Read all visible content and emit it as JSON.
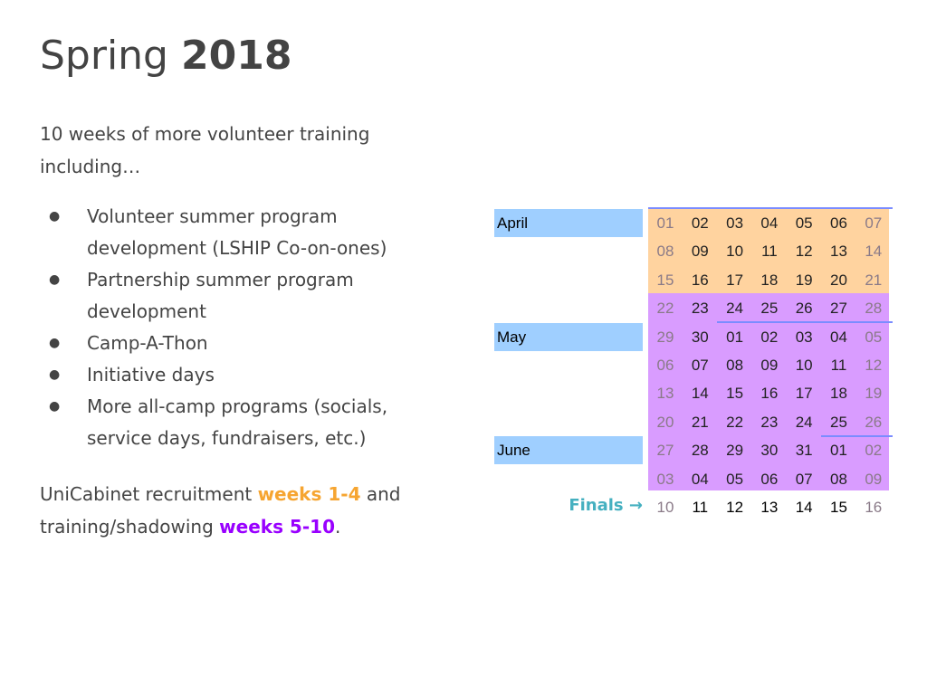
{
  "title": {
    "normal": "Spring",
    "bold": "2018"
  },
  "intro": "10 weeks of more volunteer training including…",
  "bullets": [
    "Volunteer summer program development (LSHIP Co-on-ones)",
    "Partnership summer program development",
    "Camp-A-Thon",
    "Initiative days",
    "More all-camp programs (socials, service days, fundraisers, etc.)"
  ],
  "outro": {
    "pre": "UniCabinet recruitment ",
    "orange": "weeks 1-4",
    "mid": " and training/shadowing ",
    "purple": "weeks 5-10",
    "post": "."
  },
  "colors": {
    "orange": "#f6a531",
    "purple": "#9900ff",
    "recruit_band": "#ffd39f",
    "training_band": "#d99cff",
    "month_label": "#9fcfff",
    "finals": "#45b0c0"
  },
  "calendar": {
    "months": [
      {
        "label": "April",
        "row": 0
      },
      {
        "label": "May",
        "row": 4
      },
      {
        "label": "June",
        "row": 8
      }
    ],
    "rows": [
      [
        "01",
        "02",
        "03",
        "04",
        "05",
        "06",
        "07"
      ],
      [
        "08",
        "09",
        "10",
        "11",
        "12",
        "13",
        "14"
      ],
      [
        "15",
        "16",
        "17",
        "18",
        "19",
        "20",
        "21"
      ],
      [
        "22",
        "23",
        "24",
        "25",
        "26",
        "27",
        "28"
      ],
      [
        "29",
        "30",
        "01",
        "02",
        "03",
        "04",
        "05"
      ],
      [
        "06",
        "07",
        "08",
        "09",
        "10",
        "11",
        "12"
      ],
      [
        "13",
        "14",
        "15",
        "16",
        "17",
        "18",
        "19"
      ],
      [
        "20",
        "21",
        "22",
        "23",
        "24",
        "25",
        "26"
      ],
      [
        "27",
        "28",
        "29",
        "30",
        "31",
        "01",
        "02"
      ],
      [
        "03",
        "04",
        "05",
        "06",
        "07",
        "08",
        "09"
      ],
      [
        "10",
        "11",
        "12",
        "13",
        "14",
        "15",
        "16"
      ]
    ],
    "finals_label": "Finals →"
  }
}
